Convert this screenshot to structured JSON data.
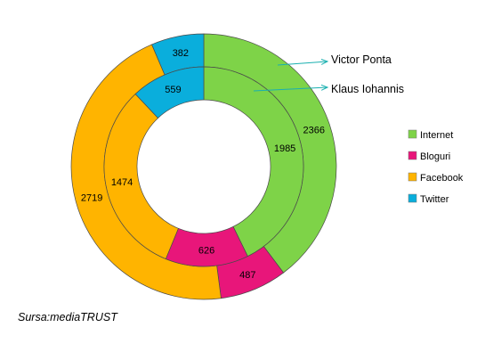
{
  "chart_data": {
    "type": "donut",
    "categories": [
      "Internet",
      "Bloguri",
      "Facebook",
      "Twitter"
    ],
    "colors": [
      "#7ED348",
      "#E8167A",
      "#FFB400",
      "#0AAEDC"
    ],
    "series": [
      {
        "name": "Victor Ponta",
        "ring": "outer",
        "values": [
          2366,
          487,
          2719,
          382
        ]
      },
      {
        "name": "Klaus Iohannis",
        "ring": "inner",
        "values": [
          1985,
          626,
          1474,
          559
        ]
      }
    ],
    "legend_position": "right",
    "annotations": [
      "Victor Ponta",
      "Klaus Iohannis"
    ]
  },
  "source": "Sursa:mediaTRUST"
}
